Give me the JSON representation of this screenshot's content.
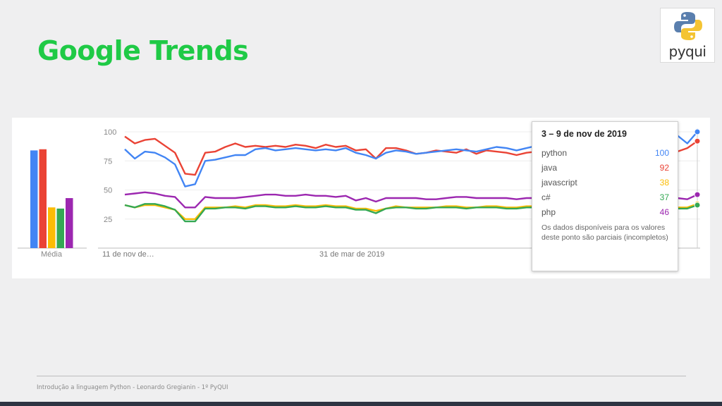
{
  "slide": {
    "title": "Google Trends",
    "logo_text": "pyqui",
    "footer": "Introdução a linguagem Python - Leonardo Gregianin - 1º PyQUI"
  },
  "colors": {
    "title_green": "#1fca46",
    "python": "#4285f4",
    "java": "#ea4335",
    "javascript": "#fbbc04",
    "csharp": "#34a853",
    "php": "#9c27b0"
  },
  "tooltip": {
    "title": "3 – 9 de nov de 2019",
    "rows": [
      {
        "term": "python",
        "value": "100"
      },
      {
        "term": "java",
        "value": "92"
      },
      {
        "term": "javascript",
        "value": "38"
      },
      {
        "term": "c#",
        "value": "37"
      },
      {
        "term": "php",
        "value": "46"
      }
    ],
    "note": "Os dados disponíveis para os valores deste ponto são parciais (incompletos)"
  },
  "chart_data": {
    "type": "line",
    "title": "",
    "ylim": [
      0,
      100
    ],
    "yticks": [
      "100",
      "75",
      "50",
      "25"
    ],
    "xticks": [
      "11 de nov de…",
      "31 de mar de 2019"
    ],
    "average_label": "Média",
    "grid": true,
    "averages": [
      {
        "name": "python",
        "value": 84
      },
      {
        "name": "java",
        "value": 85
      },
      {
        "name": "javascript",
        "value": 35
      },
      {
        "name": "c#",
        "value": 34
      },
      {
        "name": "php",
        "value": 43
      }
    ],
    "series": [
      {
        "name": "python",
        "values": [
          85,
          77,
          83,
          82,
          78,
          72,
          53,
          55,
          75,
          76,
          78,
          80,
          80,
          85,
          86,
          84,
          85,
          86,
          85,
          84,
          85,
          84,
          86,
          82,
          80,
          77,
          82,
          84,
          83,
          81,
          82,
          83,
          84,
          85,
          84,
          83,
          85,
          87,
          86,
          84,
          86,
          88,
          87,
          86,
          85,
          88,
          90,
          89,
          90,
          92,
          93,
          95,
          93,
          96,
          100,
          97,
          90,
          100
        ]
      },
      {
        "name": "java",
        "values": [
          96,
          90,
          93,
          94,
          88,
          82,
          64,
          63,
          82,
          83,
          87,
          90,
          87,
          88,
          87,
          88,
          87,
          89,
          88,
          86,
          89,
          87,
          88,
          84,
          85,
          77,
          86,
          86,
          84,
          81,
          82,
          84,
          83,
          82,
          85,
          81,
          84,
          83,
          82,
          80,
          82,
          83,
          84,
          83,
          85,
          86,
          86,
          88,
          89,
          88,
          90,
          86,
          89,
          88,
          85,
          83,
          86,
          92
        ]
      },
      {
        "name": "javascript",
        "values": [
          37,
          35,
          37,
          37,
          35,
          33,
          25,
          25,
          35,
          35,
          35,
          36,
          35,
          37,
          37,
          36,
          36,
          37,
          36,
          36,
          37,
          36,
          36,
          34,
          34,
          32,
          34,
          36,
          35,
          35,
          35,
          35,
          36,
          36,
          35,
          35,
          36,
          36,
          35,
          35,
          36,
          36,
          36,
          35,
          36,
          36,
          37,
          37,
          37,
          38,
          37,
          36,
          37,
          36,
          36,
          35,
          35,
          38
        ]
      },
      {
        "name": "c#",
        "values": [
          37,
          35,
          38,
          38,
          36,
          33,
          23,
          23,
          34,
          34,
          35,
          35,
          34,
          36,
          36,
          35,
          35,
          36,
          35,
          35,
          36,
          35,
          35,
          33,
          33,
          30,
          34,
          35,
          35,
          34,
          34,
          35,
          35,
          35,
          34,
          35,
          35,
          35,
          34,
          34,
          35,
          35,
          35,
          34,
          35,
          35,
          36,
          36,
          36,
          37,
          36,
          35,
          36,
          35,
          35,
          34,
          34,
          37
        ]
      },
      {
        "name": "php",
        "values": [
          46,
          47,
          48,
          47,
          45,
          44,
          35,
          35,
          44,
          43,
          43,
          43,
          44,
          45,
          46,
          46,
          45,
          45,
          46,
          45,
          45,
          44,
          45,
          41,
          43,
          40,
          43,
          43,
          43,
          43,
          42,
          42,
          43,
          44,
          44,
          43,
          43,
          43,
          43,
          42,
          43,
          43,
          43,
          43,
          44,
          44,
          44,
          44,
          45,
          45,
          44,
          44,
          44,
          44,
          43,
          43,
          42,
          46
        ]
      }
    ]
  }
}
